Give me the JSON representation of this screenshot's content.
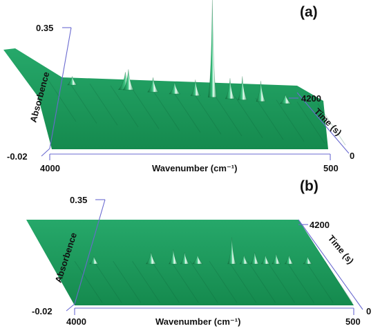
{
  "chart_data": [
    {
      "type": "surface",
      "panel_label": "(a)",
      "xlabel": "Wavenumber (cm⁻¹)",
      "ylabel": "Absorbence",
      "zlabel": "Time (s)",
      "x_ticks": [
        "4000",
        "500"
      ],
      "y_ticks": [
        "0.35",
        "-0.02"
      ],
      "z_ticks": [
        "4200",
        "0"
      ],
      "xlim": [
        4000,
        500
      ],
      "ylim": [
        -0.02,
        0.35
      ],
      "zlim": [
        0,
        4200
      ],
      "surface_color": "#1f9a5c",
      "baseline_tilt": 0.12,
      "peaks": [
        {
          "x": 3690,
          "y": 0.02,
          "width": 60
        },
        {
          "x": 3000,
          "y": 0.05,
          "width": 90
        },
        {
          "x": 2960,
          "y": 0.06,
          "width": 70
        },
        {
          "x": 2640,
          "y": 0.04,
          "width": 70
        },
        {
          "x": 2360,
          "y": 0.03,
          "width": 70
        },
        {
          "x": 2090,
          "y": 0.045,
          "width": 60
        },
        {
          "x": 1870,
          "y": 0.33,
          "width": 40
        },
        {
          "x": 1640,
          "y": 0.06,
          "width": 60
        },
        {
          "x": 1480,
          "y": 0.07,
          "width": 60
        },
        {
          "x": 1240,
          "y": 0.06,
          "width": 60
        },
        {
          "x": 920,
          "y": 0.02,
          "width": 70
        }
      ]
    },
    {
      "type": "surface",
      "panel_label": "(b)",
      "xlabel": "Wavenumber (cm⁻¹)",
      "ylabel": "Absorbence",
      "zlabel": "Time (s)",
      "x_ticks": [
        "4000",
        "500"
      ],
      "y_ticks": [
        "0.35",
        "-0.02"
      ],
      "z_ticks": [
        "4200",
        "0"
      ],
      "xlim": [
        4000,
        500
      ],
      "ylim": [
        -0.02,
        0.35
      ],
      "zlim": [
        0,
        4200
      ],
      "surface_color": "#1f9a5c",
      "baseline_tilt": 0,
      "peaks": [
        {
          "x": 3730,
          "y": 0.015,
          "width": 60
        },
        {
          "x": 2930,
          "y": 0.03,
          "width": 70
        },
        {
          "x": 2620,
          "y": 0.04,
          "width": 60
        },
        {
          "x": 2460,
          "y": 0.03,
          "width": 60
        },
        {
          "x": 2280,
          "y": 0.02,
          "width": 70
        },
        {
          "x": 1800,
          "y": 0.08,
          "width": 45
        },
        {
          "x": 1630,
          "y": 0.02,
          "width": 50
        },
        {
          "x": 1480,
          "y": 0.03,
          "width": 50
        },
        {
          "x": 1330,
          "y": 0.02,
          "width": 50
        },
        {
          "x": 1180,
          "y": 0.025,
          "width": 50
        },
        {
          "x": 1000,
          "y": 0.02,
          "width": 50
        },
        {
          "x": 740,
          "y": 0.015,
          "width": 60
        }
      ]
    }
  ]
}
